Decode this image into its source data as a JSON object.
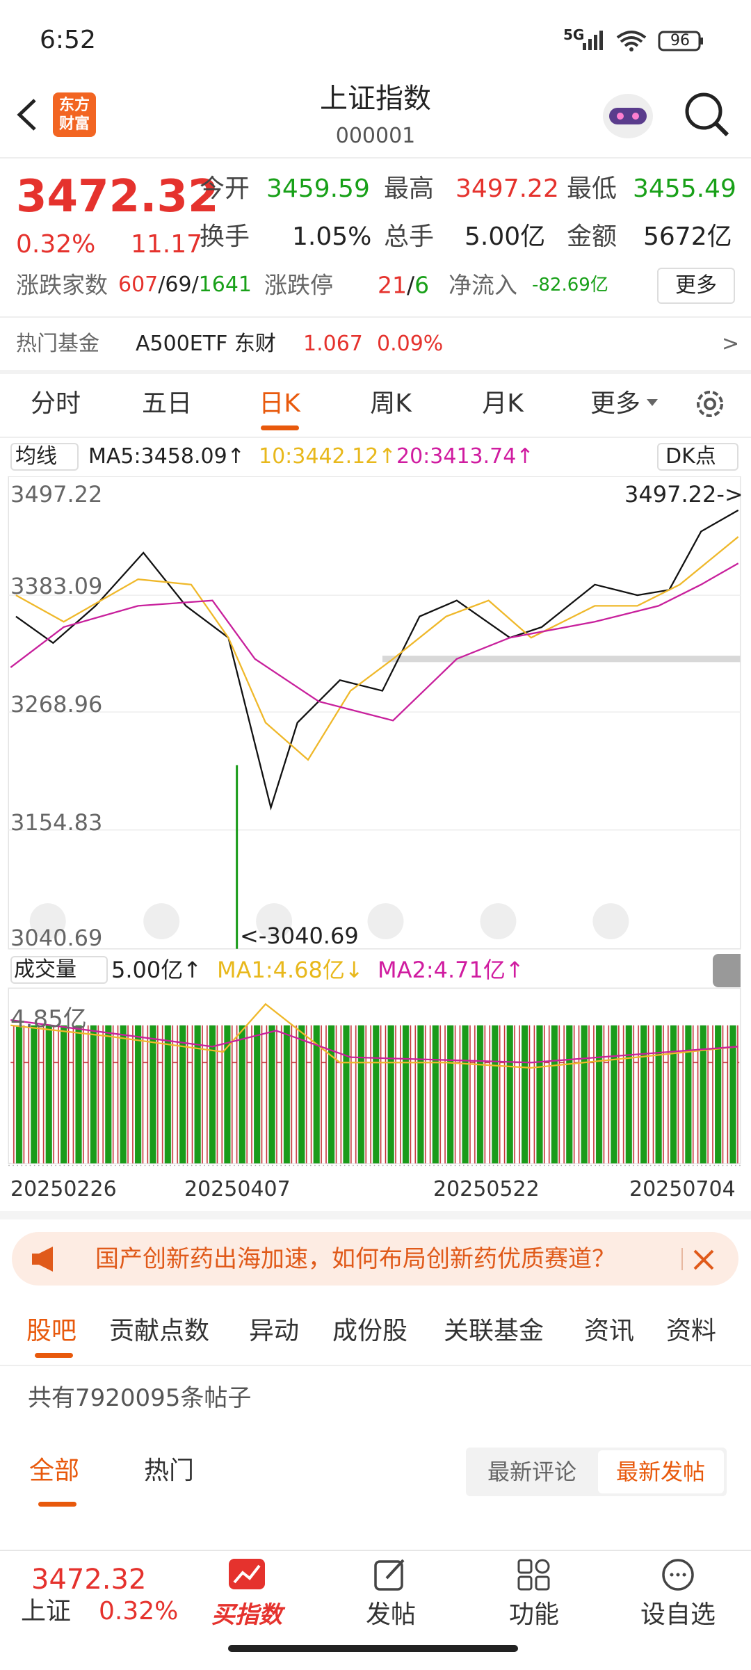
{
  "status_bar": {
    "time": "6:52",
    "network": "5G",
    "battery": "96"
  },
  "header": {
    "brand": "东方财富",
    "title": "上证指数",
    "code": "000001"
  },
  "quote": {
    "price": "3472.32",
    "change_pct": "0.32%",
    "change": "11.17",
    "fields": [
      {
        "label": "今开",
        "value": "3459.59"
      },
      {
        "label": "最高",
        "value": "3497.22"
      },
      {
        "label": "最低",
        "value": "3455.49"
      },
      {
        "label": "换手",
        "value": "1.05%"
      },
      {
        "label": "总手",
        "value": "5.00亿"
      },
      {
        "label": "金额",
        "value": "5672亿"
      }
    ],
    "breadth_label": "涨跌家数",
    "breadth": [
      "607",
      "/",
      "69",
      "/",
      "1641"
    ],
    "limit_label": "涨跌停",
    "limit": [
      "21",
      "/",
      "6"
    ],
    "netflow_label": "净流入",
    "netflow": "-82.69亿",
    "more": "更多"
  },
  "hot_fund": {
    "label": "热门基金",
    "name": "A500ETF 东财",
    "price": "1.067",
    "change": "0.09%",
    "arrow": ">"
  },
  "period_tabs": [
    "分时",
    "五日",
    "日K",
    "周K",
    "月K",
    "更多"
  ],
  "ma": {
    "selector": "均线",
    "ma5": "MA5:3458.09↑",
    "ma10": "10:3442.12↑",
    "ma20": "20:3413.74↑",
    "indicator": "DK点"
  },
  "price_axis": [
    "3497.22",
    "3383.09",
    "3268.96",
    "3154.83",
    "3040.69"
  ],
  "high_marker": "3497.22->",
  "low_marker": "<-3040.69",
  "volume": {
    "selector": "成交量",
    "value": "5.00亿↑",
    "ma1": "MA1:4.68亿↓",
    "ma2": "MA2:4.71亿↑",
    "axis": "4.85亿"
  },
  "dates": [
    "20250226",
    "20250407",
    "20250522",
    "20250704"
  ],
  "banner": "国产创新药出海加速，如何布局创新药优质赛道？",
  "info_tabs": [
    "股吧",
    "贡献点数",
    "异动",
    "成份股",
    "关联基金",
    "资讯",
    "资料"
  ],
  "post_count": "共有7920095条帖子",
  "filter_tabs": [
    "全部",
    "热门"
  ],
  "sort_tabs": [
    "最新评论",
    "最新发帖"
  ],
  "bottom_bar": {
    "price": "3472.32",
    "name": "上证",
    "change": "0.32%",
    "nav": [
      "买指数",
      "发帖",
      "功能",
      "设自选"
    ]
  }
}
